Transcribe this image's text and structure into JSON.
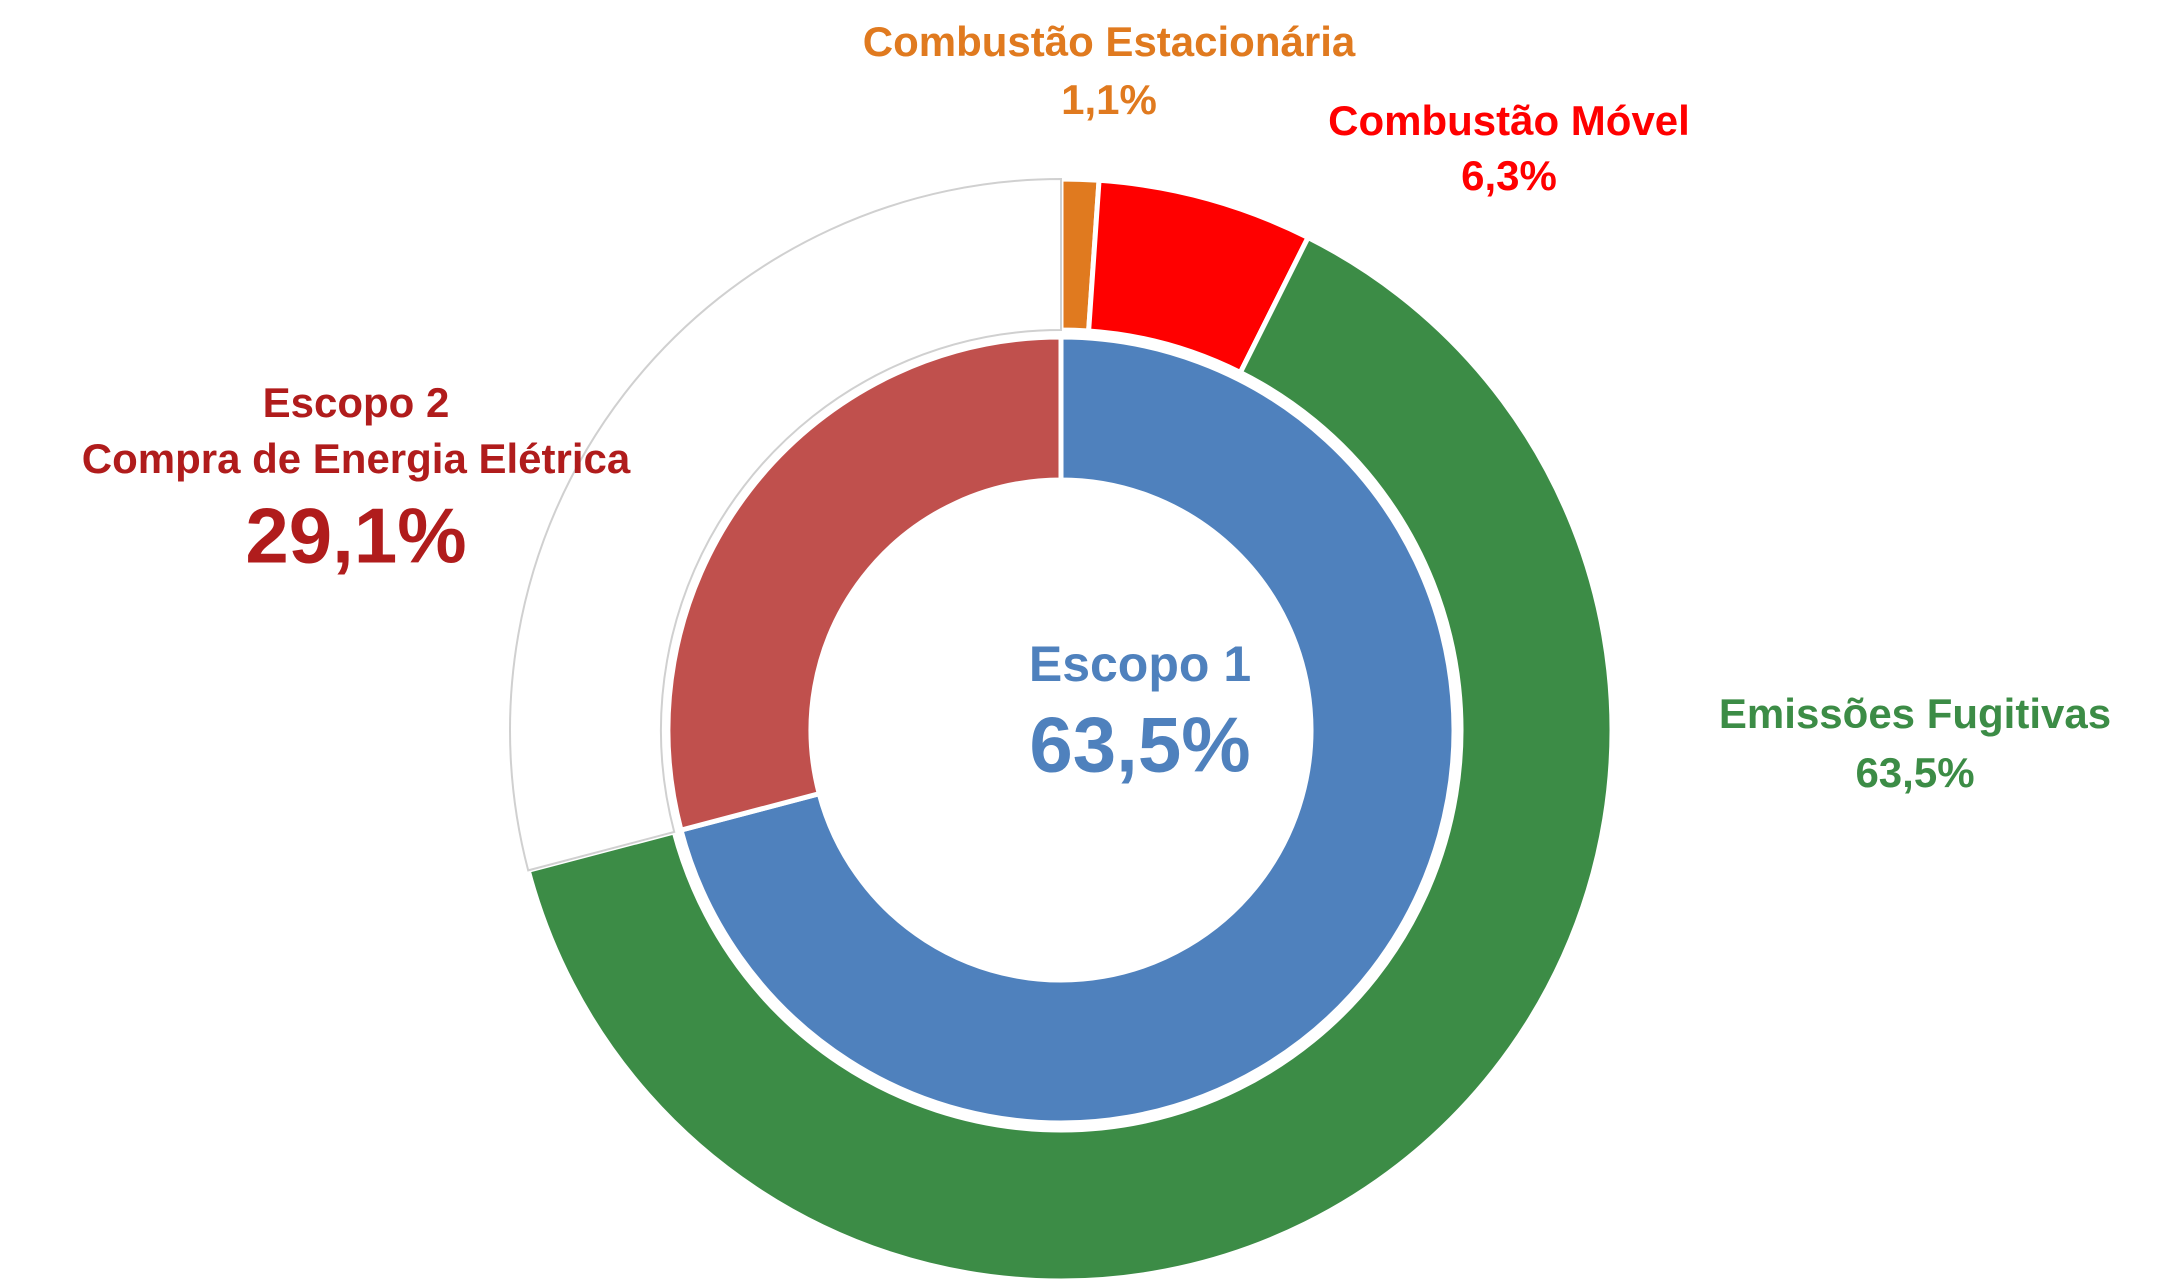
{
  "chart_data": {
    "type": "nested-donut",
    "rings": [
      {
        "categories": [
          "Escopo 1",
          "Escopo 2"
        ],
        "descriptions": [
          null,
          "Compra de Energia Elétrica"
        ],
        "values": [
          70.9,
          29.1
        ],
        "value_labels": [
          null,
          "29,1%"
        ],
        "colors": [
          "#4f81bd",
          "#c0504d"
        ],
        "label_colors": [
          "#4f81bd",
          "#b01c1c"
        ]
      },
      {
        "categories": [
          "Combustão Estacionária",
          "Combustão Móvel",
          "Emissões Fugitivas",
          null
        ],
        "values": [
          1.1,
          6.3,
          63.5,
          29.1
        ],
        "value_labels": [
          "1,1%",
          "6,3%",
          "63,5%",
          null
        ],
        "colors": [
          "#e07a1f",
          "#ff0000",
          "#3c8c46",
          "#ffffff"
        ],
        "label_colors": [
          "#e07a1f",
          "#ff0000",
          "#3c8c46",
          null
        ]
      }
    ],
    "annotations": [
      {
        "text": "63,5%",
        "color": "#4f81bd"
      }
    ]
  }
}
